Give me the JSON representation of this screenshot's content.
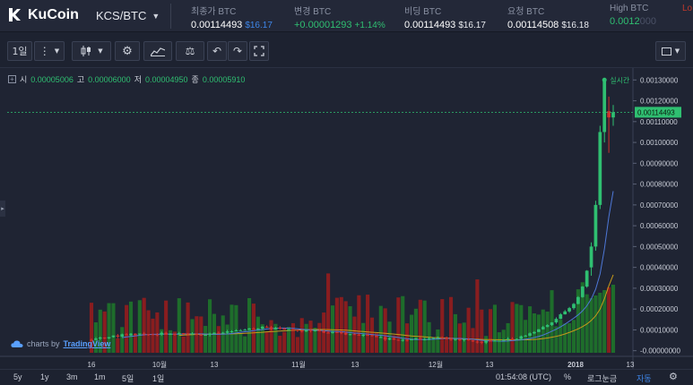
{
  "header": {
    "logo_text": "KuCoin",
    "pair": "KCS/BTC",
    "stats": [
      {
        "label": "최종가 BTC",
        "value": "0.00114493",
        "sub": "$16.17",
        "sub_color": "#3e86e8",
        "value_color": "#ffffff"
      },
      {
        "label": "변경 BTC",
        "value": "+0.00001293",
        "sub": "+1.14%",
        "sub_color": "#2fbf71",
        "value_color": "#2fbf71"
      },
      {
        "label": "비딩 BTC",
        "value": "0.00114493",
        "sub": "$16.17",
        "sub_color": "#e8eaef",
        "value_color": "#ffffff"
      },
      {
        "label": "요청 BTC",
        "value": "0.00114508",
        "sub": "$16.18",
        "sub_color": "#e8eaef",
        "value_color": "#ffffff"
      },
      {
        "label": "High BTC",
        "value": "0.0012",
        "sub": "",
        "sub_color": "#2fbf71",
        "value_color": "#2fbf71"
      },
      {
        "label": "Lo",
        "value": "",
        "sub": "",
        "sub_color": "#e8eaef",
        "value_color": "#ffffff"
      }
    ]
  },
  "toolbar": {
    "interval": "1일",
    "buttons": [
      "more-icon",
      "candle-icon",
      "gear-icon",
      "indicators-icon",
      "compare-icon",
      "undo-icon",
      "redo-icon",
      "fullscreen-icon"
    ],
    "right_button": "layout-icon"
  },
  "legend": {
    "open_label": "시",
    "open": "0.00005006",
    "high_label": "고",
    "high": "0.00006000",
    "low_label": "저",
    "low": "0.00004950",
    "close_label": "종",
    "close": "0.00005910"
  },
  "price_axis": {
    "ticks": [
      "0.00130000",
      "0.00120000",
      "0.00110000",
      "0.00100000",
      "0.00090000",
      "0.00080000",
      "0.00070000",
      "0.00060000",
      "0.00050000",
      "0.00040000",
      "0.00030000",
      "0.00020000",
      "0.00010000",
      "-0.00000000"
    ],
    "last_price": "0.00114493",
    "realtime_label": "실시간"
  },
  "time_axis": {
    "ticks": [
      "16",
      "10월",
      "13",
      "11월",
      "13",
      "12월",
      "13",
      "2018",
      "13"
    ]
  },
  "watermark": {
    "prefix": "charts by",
    "brand": "TradingView"
  },
  "bottombar": {
    "ranges": [
      "5y",
      "1y",
      "3m",
      "1m",
      "5일",
      "1일"
    ],
    "clock": "01:54:08 (UTC)",
    "percent": "%",
    "log": "로그눈금",
    "auto": "자동"
  },
  "colors": {
    "up": "#2fbf71",
    "down": "#d0312d",
    "vol_up": "#1f7a2a",
    "vol_down": "#9c1c1c",
    "ma_fast": "#4e78d8",
    "ma_slow": "#c79a1a",
    "accent": "#3e86e8"
  },
  "chart_data": {
    "type": "candlestick",
    "x_ticks": [
      "16",
      "10월",
      "13",
      "11월",
      "13",
      "12월",
      "13",
      "2018",
      "13"
    ],
    "y_range": [
      -1e-05,
      0.00134
    ],
    "last_price": 0.00114493,
    "series_tail": [
      {
        "o": 0.0004,
        "c": 0.0005,
        "h": 0.00052,
        "l": 0.00036
      },
      {
        "o": 0.0005,
        "c": 0.0007,
        "h": 0.00072,
        "l": 0.00048
      },
      {
        "o": 0.0007,
        "c": 0.00105,
        "h": 0.00108,
        "l": 0.00068
      },
      {
        "o": 0.00105,
        "c": 0.0013,
        "h": 0.00131,
        "l": 0.001
      },
      {
        "o": 0.00115,
        "c": 0.00112,
        "h": 0.00122,
        "l": 0.00095
      },
      {
        "o": 0.00112,
        "c": 0.00114493,
        "h": 0.00118,
        "l": 0.00108
      }
    ]
  }
}
